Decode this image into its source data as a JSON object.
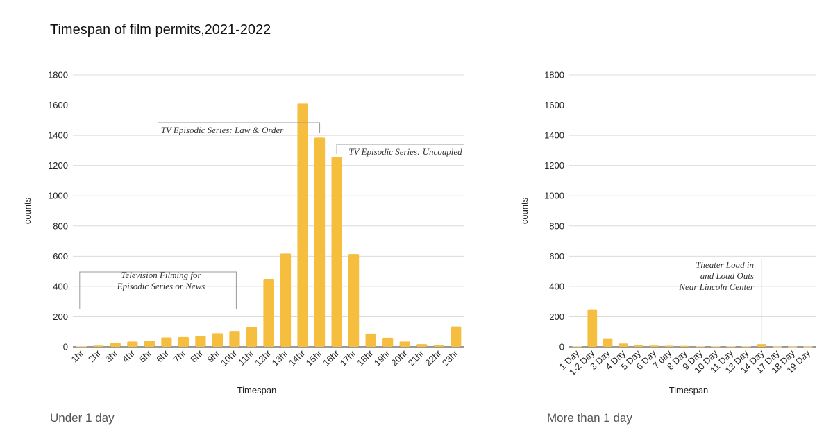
{
  "title": "Timespan of film permits,2021-2022",
  "chart_data": [
    {
      "type": "bar",
      "subtitle": "Under 1 day",
      "xlabel": "Timespan",
      "ylabel": "counts",
      "ylim": [
        0,
        1800
      ],
      "yticks": [
        0,
        200,
        400,
        600,
        800,
        1000,
        1200,
        1400,
        1600,
        1800
      ],
      "categories": [
        "1hr",
        "2hr",
        "3hr",
        "4hr",
        "5hr",
        "6hr",
        "7hr",
        "8hr",
        "9hr",
        "10hr",
        "11hr",
        "12hr",
        "13hr",
        "14hr",
        "15hr",
        "16hr",
        "17hr",
        "18hr",
        "19hr",
        "20hr",
        "21hr",
        "22hr",
        "23hr"
      ],
      "values": [
        3,
        8,
        25,
        35,
        40,
        62,
        65,
        72,
        90,
        105,
        132,
        450,
        618,
        1610,
        1385,
        1255,
        615,
        88,
        60,
        35,
        18,
        12,
        135
      ],
      "color": "#F6BE3F",
      "annotations": [
        {
          "text": [
            "Television Filming for",
            "Episodic Series or News"
          ],
          "from": "1hr",
          "to": "10hr"
        },
        {
          "text": [
            "TV Episodic Series: Law & Order"
          ],
          "at": "15hr"
        },
        {
          "text": [
            "TV Episodic Series: Uncoupled"
          ],
          "at": "16hr"
        }
      ]
    },
    {
      "type": "bar",
      "subtitle": "More than 1 day",
      "xlabel": "Timespan",
      "ylabel": "counts",
      "ylim": [
        0,
        1800
      ],
      "yticks": [
        0,
        200,
        400,
        600,
        800,
        1000,
        1200,
        1400,
        1600,
        1800
      ],
      "categories": [
        "1 Day",
        "1-2 Day",
        "3 Day",
        "4 Day",
        "5 Day",
        "6 Day",
        "7 day",
        "8 Day",
        "9 Day",
        "10 Day",
        "11 Day",
        "13 Day",
        "14 Day",
        "17 Day",
        "18 Day",
        "19 Day"
      ],
      "values": [
        3,
        245,
        57,
        22,
        12,
        8,
        7,
        6,
        3,
        3,
        3,
        3,
        18,
        2,
        2,
        2
      ],
      "color": "#F6BE3F",
      "annotations": [
        {
          "text": [
            "Theater Load in",
            "and Load Outs",
            "Near Lincoln Center"
          ],
          "at": "14 Day"
        }
      ]
    }
  ]
}
